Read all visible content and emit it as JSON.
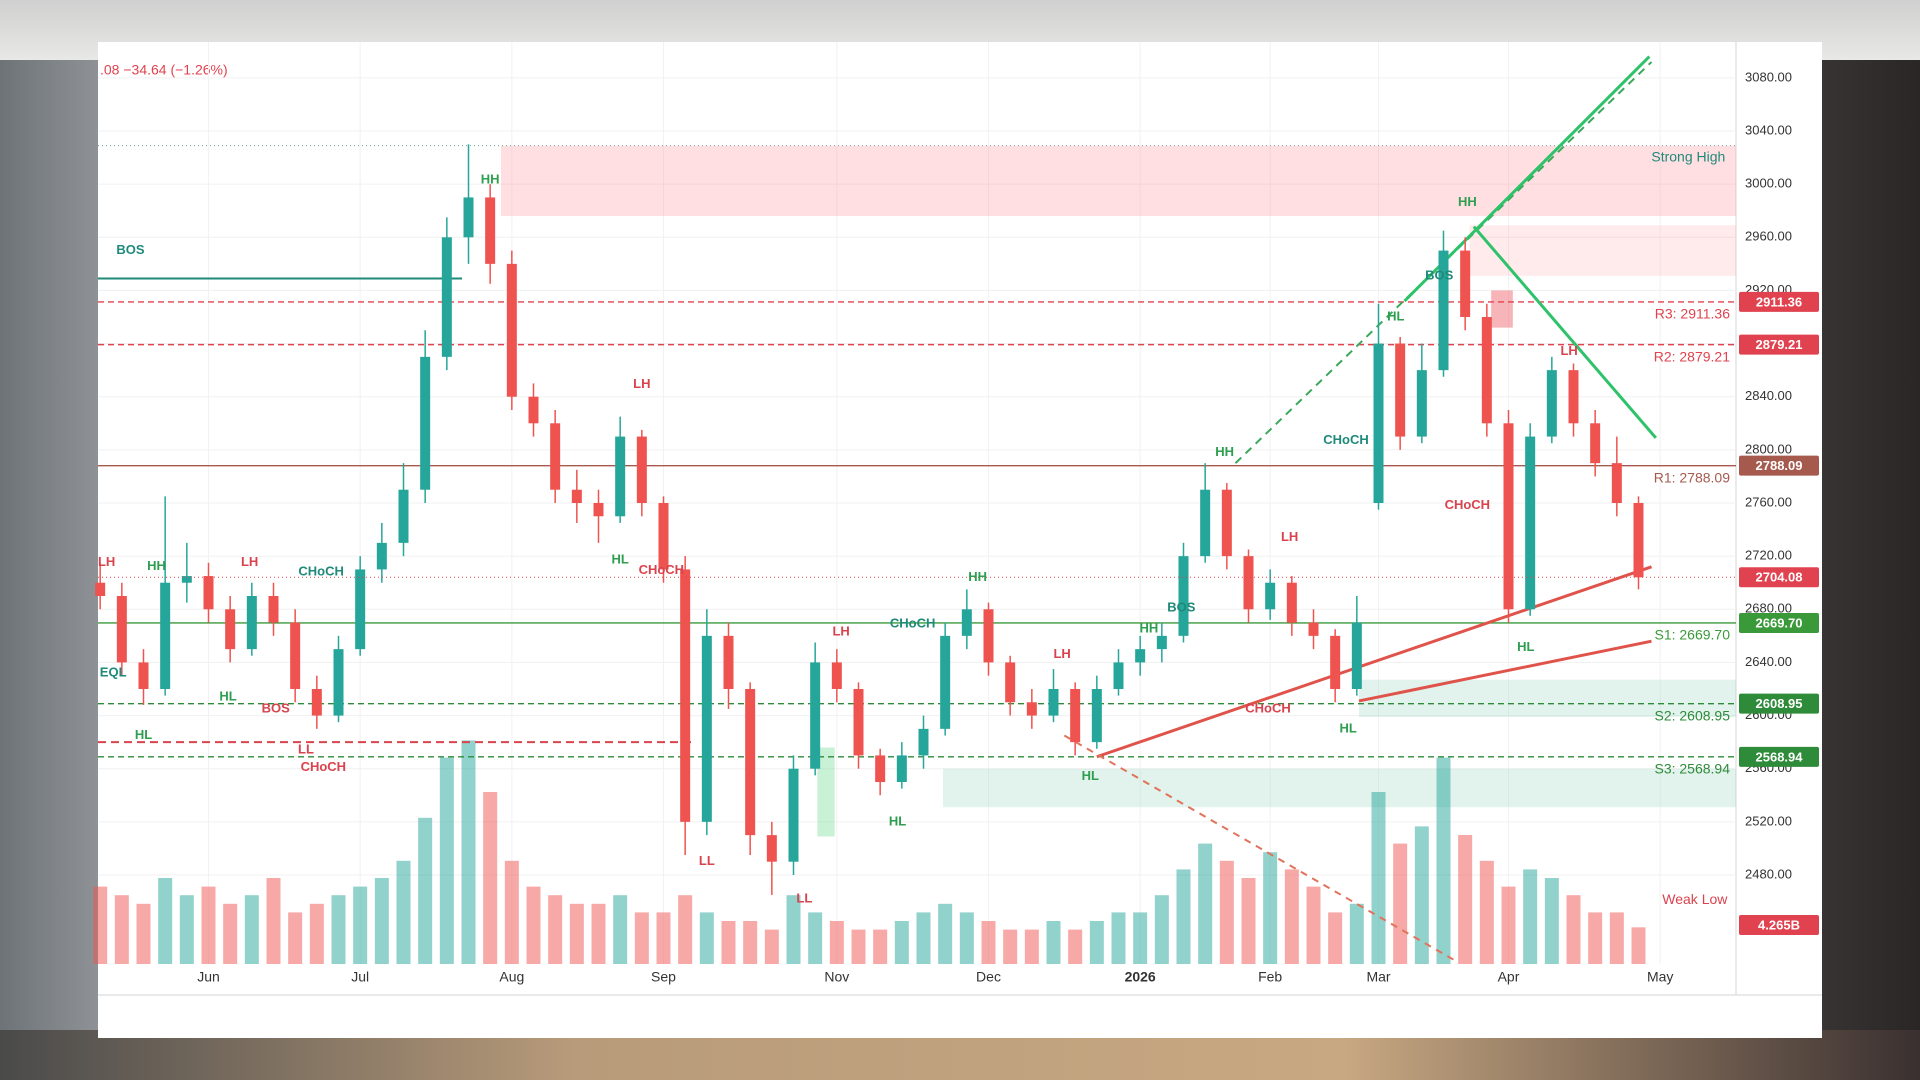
{
  "chart_data": {
    "type": "candlestick",
    "header": ".08  −34.64 (−1.26%)",
    "ylim": [
      2413,
      3107
    ],
    "yticks": [
      2480,
      2520,
      2560,
      2600,
      2640,
      2680,
      2720,
      2760,
      2800,
      2840,
      2880,
      2920,
      2960,
      3000,
      3040,
      3080
    ],
    "ytick_format": {
      "value": 2,
      "label": "fixed-decimals"
    },
    "xlim": [
      -0.1,
      75.5
    ],
    "xticks": [
      {
        "value": 5,
        "label": "Jun"
      },
      {
        "value": 12,
        "label": "Jul"
      },
      {
        "value": 19,
        "label": "Aug"
      },
      {
        "value": 26,
        "label": "Sep"
      },
      {
        "value": 34,
        "label": "Nov"
      },
      {
        "value": 41,
        "label": "Dec"
      },
      {
        "value": 48,
        "label": "2026"
      },
      {
        "value": 54,
        "label": "Feb"
      },
      {
        "value": 59,
        "label": "Mar"
      },
      {
        "value": 65,
        "label": "Apr"
      },
      {
        "value": 72,
        "label": "May"
      }
    ],
    "up_color": "#26a69a",
    "down_color": "#ef5350",
    "ohlc": [
      [
        2700,
        2715,
        2680,
        2690
      ],
      [
        2690,
        2700,
        2630,
        2640
      ],
      [
        2640,
        2650,
        2608,
        2620
      ],
      [
        2620,
        2765,
        2615,
        2700
      ],
      [
        2700,
        2730,
        2685,
        2705
      ],
      [
        2705,
        2715,
        2670,
        2680
      ],
      [
        2680,
        2690,
        2640,
        2650
      ],
      [
        2650,
        2700,
        2645,
        2690
      ],
      [
        2690,
        2700,
        2660,
        2670
      ],
      [
        2670,
        2680,
        2610,
        2620
      ],
      [
        2620,
        2630,
        2590,
        2600
      ],
      [
        2600,
        2660,
        2595,
        2650
      ],
      [
        2650,
        2720,
        2645,
        2710
      ],
      [
        2710,
        2745,
        2700,
        2730
      ],
      [
        2730,
        2790,
        2720,
        2770
      ],
      [
        2770,
        2890,
        2760,
        2870
      ],
      [
        2870,
        2975,
        2860,
        2960
      ],
      [
        2960,
        3030,
        2940,
        2990
      ],
      [
        2990,
        3000,
        2925,
        2940
      ],
      [
        2940,
        2950,
        2830,
        2840
      ],
      [
        2840,
        2850,
        2810,
        2820
      ],
      [
        2820,
        2830,
        2760,
        2770
      ],
      [
        2770,
        2785,
        2745,
        2760
      ],
      [
        2760,
        2770,
        2730,
        2750
      ],
      [
        2750,
        2825,
        2745,
        2810
      ],
      [
        2810,
        2815,
        2750,
        2760
      ],
      [
        2760,
        2765,
        2700,
        2710
      ],
      [
        2710,
        2720,
        2495,
        2520
      ],
      [
        2520,
        2680,
        2510,
        2660
      ],
      [
        2660,
        2670,
        2605,
        2620
      ],
      [
        2620,
        2625,
        2495,
        2510
      ],
      [
        2510,
        2520,
        2465,
        2490
      ],
      [
        2490,
        2570,
        2480,
        2560
      ],
      [
        2560,
        2655,
        2555,
        2640
      ],
      [
        2640,
        2650,
        2610,
        2620
      ],
      [
        2620,
        2625,
        2560,
        2570
      ],
      [
        2570,
        2575,
        2540,
        2550
      ],
      [
        2550,
        2580,
        2545,
        2570
      ],
      [
        2570,
        2600,
        2560,
        2590
      ],
      [
        2590,
        2670,
        2585,
        2660
      ],
      [
        2660,
        2695,
        2650,
        2680
      ],
      [
        2680,
        2685,
        2630,
        2640
      ],
      [
        2640,
        2645,
        2600,
        2610
      ],
      [
        2610,
        2620,
        2590,
        2600
      ],
      [
        2600,
        2635,
        2595,
        2620
      ],
      [
        2620,
        2625,
        2570,
        2580
      ],
      [
        2580,
        2630,
        2575,
        2620
      ],
      [
        2620,
        2650,
        2615,
        2640
      ],
      [
        2640,
        2660,
        2630,
        2650
      ],
      [
        2650,
        2670,
        2640,
        2660
      ],
      [
        2660,
        2730,
        2655,
        2720
      ],
      [
        2720,
        2790,
        2715,
        2770
      ],
      [
        2770,
        2775,
        2710,
        2720
      ],
      [
        2720,
        2725,
        2670,
        2680
      ],
      [
        2680,
        2710,
        2672,
        2700
      ],
      [
        2700,
        2705,
        2660,
        2670
      ],
      [
        2670,
        2680,
        2650,
        2660
      ],
      [
        2660,
        2665,
        2610,
        2620
      ],
      [
        2620,
        2690,
        2615,
        2670
      ],
      [
        2760,
        2910,
        2755,
        2880
      ],
      [
        2880,
        2885,
        2800,
        2810
      ],
      [
        2810,
        2880,
        2805,
        2860
      ],
      [
        2860,
        2965,
        2855,
        2950
      ],
      [
        2950,
        2960,
        2890,
        2900
      ],
      [
        2900,
        2910,
        2810,
        2820
      ],
      [
        2820,
        2830,
        2670,
        2680
      ],
      [
        2680,
        2820,
        2675,
        2810
      ],
      [
        2810,
        2870,
        2805,
        2860
      ],
      [
        2860,
        2865,
        2810,
        2820
      ],
      [
        2820,
        2830,
        2780,
        2790
      ],
      [
        2790,
        2810,
        2750,
        2760
      ],
      [
        2760,
        2765,
        2695,
        2704.08
      ]
    ],
    "volume": [
      9,
      8,
      7,
      10,
      8,
      9,
      7,
      8,
      10,
      6,
      7,
      8,
      9,
      10,
      12,
      17,
      24,
      26,
      20,
      12,
      9,
      8,
      7,
      7,
      8,
      6,
      6,
      8,
      6,
      5,
      5,
      4,
      8,
      6,
      5,
      4,
      4,
      5,
      6,
      7,
      6,
      5,
      4,
      4,
      5,
      4,
      5,
      6,
      6,
      8,
      11,
      14,
      12,
      10,
      13,
      11,
      9,
      6,
      7,
      20,
      14,
      16,
      24,
      15,
      12,
      9,
      11,
      10,
      8,
      6,
      6,
      4.265
    ],
    "volume_lim": [
      0,
      30
    ],
    "last_volume_label": "4.265B",
    "levels": [
      {
        "text": "R3: 2911.36",
        "value": 2911.36,
        "tag": "2911.36",
        "color": "#e0434f",
        "dash": "6,4"
      },
      {
        "text": "R2: 2879.21",
        "value": 2879.21,
        "tag": "2879.21",
        "color": "#e0434f",
        "dash": "6,4"
      },
      {
        "text": "R1: 2788.09",
        "value": 2788.09,
        "tag": "2788.09",
        "color": "#a65a4e",
        "dash": "none"
      },
      {
        "text": "S1: 2669.70",
        "value": 2669.7,
        "tag": "2669.70",
        "color": "#3a9a3a",
        "dash": "none"
      },
      {
        "text": "S2: 2608.95",
        "value": 2608.95,
        "tag": "2608.95",
        "color": "#2e8b3a",
        "dash": "6,4"
      },
      {
        "text": "S3: 2568.94",
        "value": 2568.94,
        "tag": "2568.94",
        "color": "#2e8b3a",
        "dash": "6,4"
      }
    ],
    "zones": [
      {
        "x": [
          18.5,
          75.5
        ],
        "y": [
          2976,
          3029
        ],
        "color": "rgba(255,140,150,0.28)"
      },
      {
        "x": [
          63.2,
          75.5
        ],
        "y": [
          2931,
          2969
        ],
        "color": "rgba(255,150,160,0.2)"
      },
      {
        "x": [
          64.2,
          65.2
        ],
        "y": [
          2892,
          2920
        ],
        "color": "rgba(240,90,100,0.45)"
      },
      {
        "x": [
          58.1,
          75.5
        ],
        "y": [
          2599,
          2627
        ],
        "color": "rgba(120,200,170,0.22)"
      },
      {
        "x": [
          38.9,
          75.5
        ],
        "y": [
          2531,
          2560
        ],
        "color": "rgba(120,200,170,0.22)"
      },
      {
        "x": [
          33.1,
          33.9
        ],
        "y": [
          2509,
          2576
        ],
        "color": "rgba(120,220,150,0.4)"
      }
    ],
    "lines": [
      {
        "x": [
          -0.1,
          75.5
        ],
        "y": [
          3029,
          3029
        ],
        "color": "#6aa89a",
        "width": 1,
        "dash": "1,3"
      },
      {
        "x": [
          -0.1,
          16.7
        ],
        "y": [
          2929,
          2929
        ],
        "color": "#1f8a7a",
        "width": 2,
        "dash": "none"
      },
      {
        "x": [
          -0.1,
          27.3
        ],
        "y": [
          2580,
          2580
        ],
        "color": "#d9434e",
        "width": 2,
        "dash": "8,5"
      },
      {
        "x": [
          52.4,
          71.6
        ],
        "y": [
          2790,
          3092
        ],
        "color": "#3aa85a",
        "width": 2,
        "dash": "8,6"
      },
      {
        "x": [
          60.2,
          71.5
        ],
        "y": [
          2912,
          3096
        ],
        "color": "#2ec26a",
        "width": 3,
        "dash": "none"
      },
      {
        "x": [
          63.4,
          71.8
        ],
        "y": [
          2968,
          2809
        ],
        "color": "#2ec26a",
        "width": 3,
        "dash": "none"
      },
      {
        "x": [
          46,
          71.6
        ],
        "y": [
          2569,
          2712
        ],
        "color": "#e0534a",
        "width": 3,
        "dash": "none"
      },
      {
        "x": [
          58.1,
          71.6
        ],
        "y": [
          2611,
          2656
        ],
        "color": "#e0534a",
        "width": 3,
        "dash": "none"
      },
      {
        "x": [
          44.5,
          62.6
        ],
        "y": [
          2585,
          2415
        ],
        "color": "#e0735a",
        "width": 2,
        "dash": "7,6"
      }
    ],
    "annotations": [
      {
        "text": "BOS",
        "x": 1.4,
        "y": 2950,
        "color": "#1f8a7a"
      },
      {
        "text": "LH",
        "x": 0.3,
        "y": 2715,
        "color": "#d9434e"
      },
      {
        "text": "HH",
        "x": 2.6,
        "y": 2712,
        "color": "#2e9e4f"
      },
      {
        "text": "EQL",
        "x": 0.6,
        "y": 2632,
        "color": "#1f8a7a"
      },
      {
        "text": "HL",
        "x": 2,
        "y": 2585,
        "color": "#2e9e4f"
      },
      {
        "text": "HL",
        "x": 5.9,
        "y": 2614,
        "color": "#2e9e4f"
      },
      {
        "text": "LH",
        "x": 6.9,
        "y": 2715,
        "color": "#d9434e"
      },
      {
        "text": "BOS",
        "x": 8.1,
        "y": 2605,
        "color": "#d9434e"
      },
      {
        "text": "CHoCH",
        "x": 10.2,
        "y": 2708,
        "color": "#1f8a7a"
      },
      {
        "text": "LL",
        "x": 9.5,
        "y": 2574,
        "color": "#d9434e"
      },
      {
        "text": "CHoCH",
        "x": 10.3,
        "y": 2561,
        "color": "#d9434e"
      },
      {
        "text": "HH",
        "x": 18,
        "y": 3003,
        "color": "#2e9e4f"
      },
      {
        "text": "LH",
        "x": 25,
        "y": 2849,
        "color": "#d9434e"
      },
      {
        "text": "HL",
        "x": 24,
        "y": 2717,
        "color": "#2e9e4f"
      },
      {
        "text": "CHoCH",
        "x": 25.9,
        "y": 2709,
        "color": "#d9434e"
      },
      {
        "text": "LL",
        "x": 28,
        "y": 2490,
        "color": "#d9434e"
      },
      {
        "text": "LL",
        "x": 32.5,
        "y": 2462,
        "color": "#d9434e"
      },
      {
        "text": "LH",
        "x": 34.2,
        "y": 2663,
        "color": "#d9434e"
      },
      {
        "text": "CHoCH",
        "x": 37.5,
        "y": 2669,
        "color": "#1f8a7a"
      },
      {
        "text": "HL",
        "x": 36.8,
        "y": 2520,
        "color": "#2e9e4f"
      },
      {
        "text": "HH",
        "x": 40.5,
        "y": 2704,
        "color": "#2e9e4f"
      },
      {
        "text": "LH",
        "x": 44.4,
        "y": 2646,
        "color": "#d9434e"
      },
      {
        "text": "HL",
        "x": 45.7,
        "y": 2554,
        "color": "#2e9e4f"
      },
      {
        "text": "HH",
        "x": 48.4,
        "y": 2665,
        "color": "#2e9e4f"
      },
      {
        "text": "BOS",
        "x": 49.9,
        "y": 2681,
        "color": "#1f8a7a"
      },
      {
        "text": "HH",
        "x": 51.9,
        "y": 2798,
        "color": "#2e9e4f"
      },
      {
        "text": "LH",
        "x": 54.9,
        "y": 2734,
        "color": "#d9434e"
      },
      {
        "text": "CHoCH",
        "x": 53.9,
        "y": 2605,
        "color": "#d9434e"
      },
      {
        "text": "CHoCH",
        "x": 57.5,
        "y": 2807,
        "color": "#1f8a7a"
      },
      {
        "text": "HL",
        "x": 57.6,
        "y": 2590,
        "color": "#2e9e4f"
      },
      {
        "text": "HL",
        "x": 59.8,
        "y": 2900,
        "color": "#2e9e4f"
      },
      {
        "text": "BOS",
        "x": 61.8,
        "y": 2931,
        "color": "#1f8a7a"
      },
      {
        "text": "HH",
        "x": 63.1,
        "y": 2986,
        "color": "#2e9e4f"
      },
      {
        "text": "CHoCH",
        "x": 63.1,
        "y": 2758,
        "color": "#d9434e"
      },
      {
        "text": "HL",
        "x": 65.8,
        "y": 2651,
        "color": "#2e9e4f"
      },
      {
        "text": "LH",
        "x": 67.8,
        "y": 2874,
        "color": "#d9434e"
      },
      {
        "text": "Strong High",
        "x": 73.3,
        "y": 3020,
        "color": "#1f8a7a"
      },
      {
        "text": "Weak Low",
        "x": 73.6,
        "y": 2461,
        "color": "#d9434e"
      }
    ]
  }
}
